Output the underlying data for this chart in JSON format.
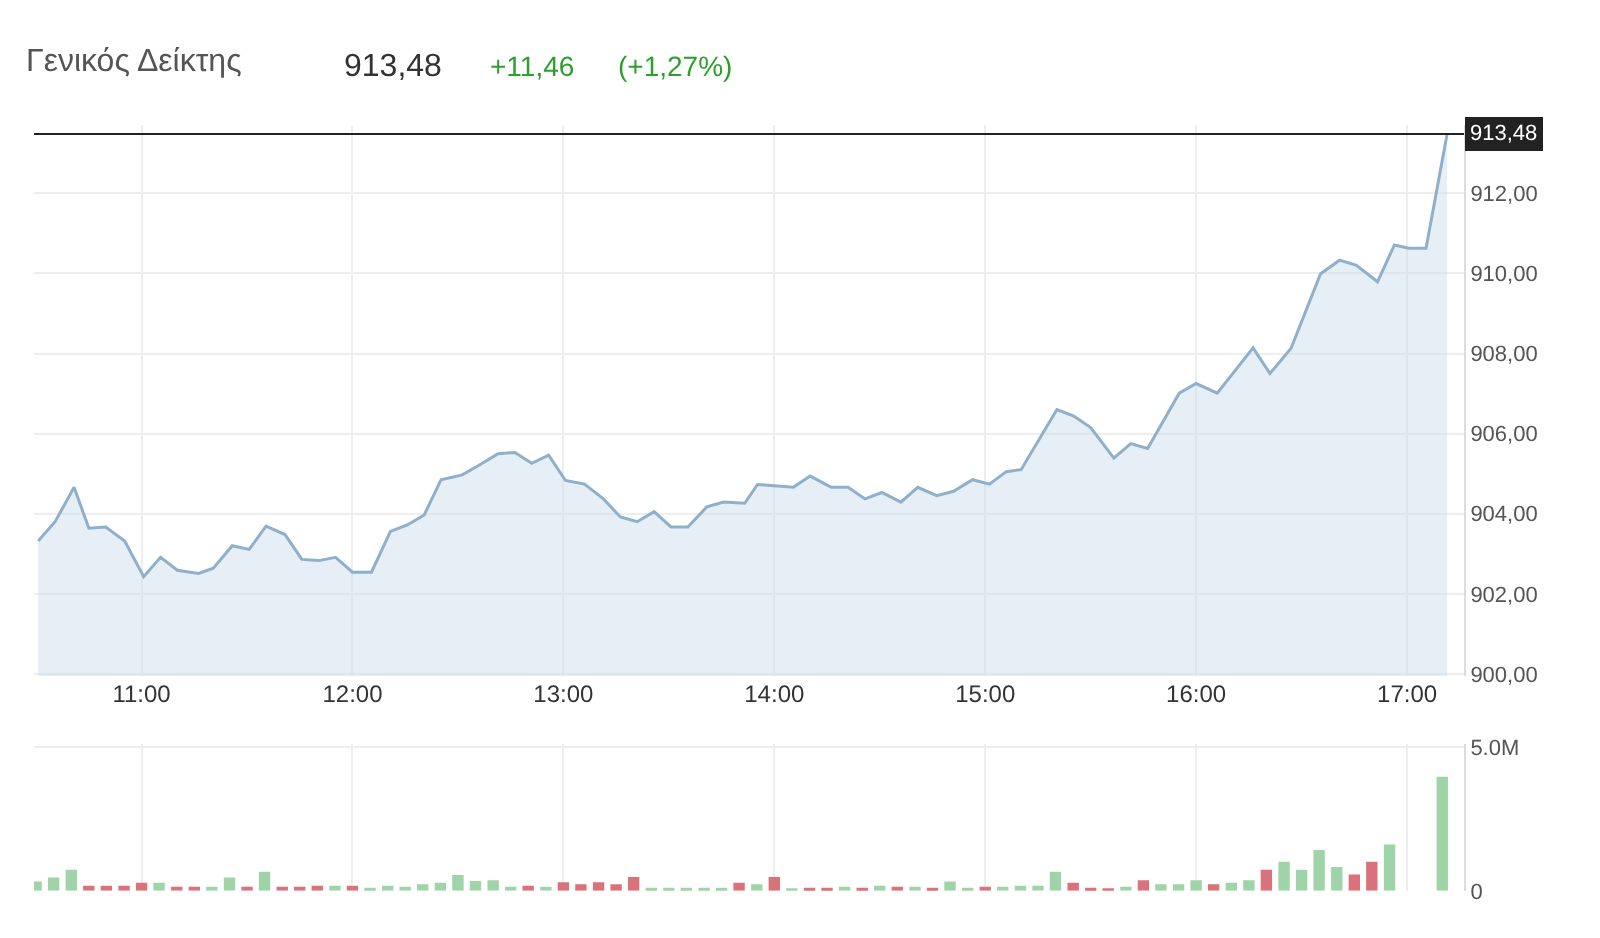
{
  "chart_data": [
    {
      "type": "area",
      "title": "Γενικός Δείκτης",
      "annotations": [
        "913,48",
        "+11,46",
        "(+1,27%)"
      ],
      "x": [
        10.51,
        10.59,
        10.68,
        10.75,
        10.83,
        10.92,
        11.01,
        11.09,
        11.17,
        11.27,
        11.34,
        11.43,
        11.51,
        11.59,
        11.68,
        11.76,
        11.84,
        11.92,
        12.0,
        12.09,
        12.18,
        12.26,
        12.34,
        12.42,
        12.52,
        12.59,
        12.69,
        12.77,
        12.85,
        12.93,
        13.01,
        13.1,
        13.19,
        13.27,
        13.35,
        13.43,
        13.51,
        13.59,
        13.68,
        13.76,
        13.86,
        13.92,
        14.0,
        14.09,
        14.17,
        14.27,
        14.35,
        14.43,
        14.51,
        14.6,
        14.68,
        14.77,
        14.85,
        14.94,
        15.02,
        15.1,
        15.17,
        15.34,
        15.42,
        15.5,
        15.61,
        15.69,
        15.77,
        15.92,
        16.0,
        16.1,
        16.27,
        16.35,
        16.45,
        16.59,
        16.68,
        16.76,
        16.86,
        16.94,
        17.01,
        17.09,
        17.19
      ],
      "series": [
        {
          "color": "#8fb0cc",
          "values": [
            903.32,
            903.8,
            904.66,
            903.64,
            903.67,
            903.32,
            902.43,
            902.91,
            902.59,
            902.51,
            902.64,
            903.2,
            903.11,
            903.69,
            903.48,
            902.86,
            902.83,
            902.91,
            902.54,
            902.54,
            903.56,
            903.72,
            903.97,
            904.85,
            904.97,
            905.18,
            905.5,
            905.53,
            905.26,
            905.46,
            904.83,
            904.74,
            904.37,
            903.92,
            903.8,
            904.05,
            903.67,
            903.67,
            904.17,
            904.29,
            904.26,
            904.73,
            904.7,
            904.66,
            904.94,
            904.66,
            904.66,
            904.37,
            904.53,
            904.29,
            904.66,
            904.45,
            904.56,
            904.85,
            904.74,
            905.05,
            905.1,
            906.6,
            906.44,
            906.15,
            905.39,
            905.75,
            905.63,
            907.01,
            907.25,
            907.01,
            908.14,
            907.5,
            908.13,
            909.99,
            910.33,
            910.2,
            909.79,
            910.71,
            910.63,
            910.63,
            913.48
          ]
        }
      ],
      "xlim": [
        10.49,
        17.27
      ],
      "ylim": [
        899.95,
        913.7
      ],
      "xticks": [
        {
          "value": 11,
          "label": "11:00"
        },
        {
          "value": 12,
          "label": "12:00"
        },
        {
          "value": 13,
          "label": "13:00"
        },
        {
          "value": 14,
          "label": "14:00"
        },
        {
          "value": 15,
          "label": "15:00"
        },
        {
          "value": 16,
          "label": "16:00"
        },
        {
          "value": 17,
          "label": "17:00"
        }
      ],
      "yticks": [
        {
          "value": 900,
          "label": "900,00"
        },
        {
          "value": 902,
          "label": "902,00"
        },
        {
          "value": 904,
          "label": "904,00"
        },
        {
          "value": 906,
          "label": "906,00"
        },
        {
          "value": 908,
          "label": "908,00"
        },
        {
          "value": 910,
          "label": "910,00"
        },
        {
          "value": 912,
          "label": "912,00"
        }
      ],
      "ref_lines": [
        {
          "axis": "y",
          "value": 913.48,
          "label": "913,48",
          "color": "#222222"
        }
      ],
      "grid": true
    },
    {
      "type": "bar",
      "tick_labels": "y",
      "x": [
        10.5,
        10.583,
        10.667,
        10.75,
        10.833,
        10.917,
        11.0,
        11.083,
        11.167,
        11.25,
        11.333,
        11.417,
        11.5,
        11.583,
        11.667,
        11.75,
        11.833,
        11.917,
        12.0,
        12.083,
        12.167,
        12.25,
        12.333,
        12.417,
        12.5,
        12.583,
        12.667,
        12.75,
        12.833,
        12.917,
        13.0,
        13.083,
        13.167,
        13.25,
        13.333,
        13.417,
        13.5,
        13.583,
        13.667,
        13.75,
        13.833,
        13.917,
        14.0,
        14.083,
        14.167,
        14.25,
        14.333,
        14.417,
        14.5,
        14.583,
        14.667,
        14.75,
        14.833,
        14.917,
        15.0,
        15.083,
        15.167,
        15.25,
        15.333,
        15.417,
        15.5,
        15.583,
        15.667,
        15.75,
        15.833,
        15.917,
        16.0,
        16.083,
        16.167,
        16.25,
        16.333,
        16.417,
        16.5,
        16.583,
        16.667,
        16.75,
        16.833,
        16.917,
        17.0,
        17.083,
        17.167
      ],
      "values": [
        0.32,
        0.46,
        0.73,
        0.18,
        0.18,
        0.18,
        0.28,
        0.28,
        0.14,
        0.14,
        0.14,
        0.46,
        0.14,
        0.66,
        0.14,
        0.14,
        0.18,
        0.18,
        0.18,
        0.11,
        0.18,
        0.14,
        0.23,
        0.28,
        0.55,
        0.34,
        0.37,
        0.14,
        0.18,
        0.14,
        0.3,
        0.23,
        0.3,
        0.23,
        0.48,
        0.11,
        0.11,
        0.11,
        0.11,
        0.11,
        0.28,
        0.23,
        0.48,
        0.09,
        0.11,
        0.11,
        0.14,
        0.11,
        0.18,
        0.14,
        0.14,
        0.11,
        0.32,
        0.11,
        0.14,
        0.14,
        0.18,
        0.18,
        0.66,
        0.28,
        0.11,
        0.09,
        0.14,
        0.37,
        0.23,
        0.23,
        0.37,
        0.23,
        0.28,
        0.37,
        0.73,
        1.01,
        0.73,
        1.42,
        0.83,
        0.57,
        1.01,
        1.61,
        null,
        null,
        3.97
      ],
      "colors": [
        "#9fd4a8",
        "#9fd4a8",
        "#9fd4a8",
        "#d9727a",
        "#d9727a",
        "#d9727a",
        "#d9727a",
        "#9fd4a8",
        "#d9727a",
        "#d9727a",
        "#9fd4a8",
        "#9fd4a8",
        "#d9727a",
        "#9fd4a8",
        "#d9727a",
        "#d9727a",
        "#d9727a",
        "#9fd4a8",
        "#d9727a",
        "#9fd4a8",
        "#9fd4a8",
        "#9fd4a8",
        "#9fd4a8",
        "#9fd4a8",
        "#9fd4a8",
        "#9fd4a8",
        "#9fd4a8",
        "#9fd4a8",
        "#d9727a",
        "#9fd4a8",
        "#d9727a",
        "#d9727a",
        "#d9727a",
        "#d9727a",
        "#d9727a",
        "#9fd4a8",
        "#9fd4a8",
        "#9fd4a8",
        "#9fd4a8",
        "#9fd4a8",
        "#d9727a",
        "#9fd4a8",
        "#d9727a",
        "#9fd4a8",
        "#d9727a",
        "#d9727a",
        "#9fd4a8",
        "#d9727a",
        "#9fd4a8",
        "#d9727a",
        "#9fd4a8",
        "#d9727a",
        "#9fd4a8",
        "#9fd4a8",
        "#d9727a",
        "#9fd4a8",
        "#9fd4a8",
        "#9fd4a8",
        "#9fd4a8",
        "#d9727a",
        "#d9727a",
        "#d9727a",
        "#9fd4a8",
        "#d9727a",
        "#9fd4a8",
        "#9fd4a8",
        "#9fd4a8",
        "#d9727a",
        "#9fd4a8",
        "#9fd4a8",
        "#d9727a",
        "#9fd4a8",
        "#9fd4a8",
        "#9fd4a8",
        "#9fd4a8",
        "#d9727a",
        "#d9727a",
        "#9fd4a8",
        "#9fd4a8",
        "#9fd4a8",
        "#9fd4a8"
      ],
      "xlim": [
        10.49,
        17.27
      ],
      "ylim": [
        0,
        5.1
      ],
      "xticks": [
        {
          "value": 11,
          "label": null
        },
        {
          "value": 12,
          "label": null
        },
        {
          "value": 13,
          "label": null
        },
        {
          "value": 14,
          "label": null
        },
        {
          "value": 15,
          "label": null
        },
        {
          "value": 16,
          "label": null
        },
        {
          "value": 17,
          "label": null
        }
      ],
      "yticks": [
        0,
        {
          "value": 5,
          "label": "5.0M"
        }
      ],
      "grid": true
    }
  ]
}
